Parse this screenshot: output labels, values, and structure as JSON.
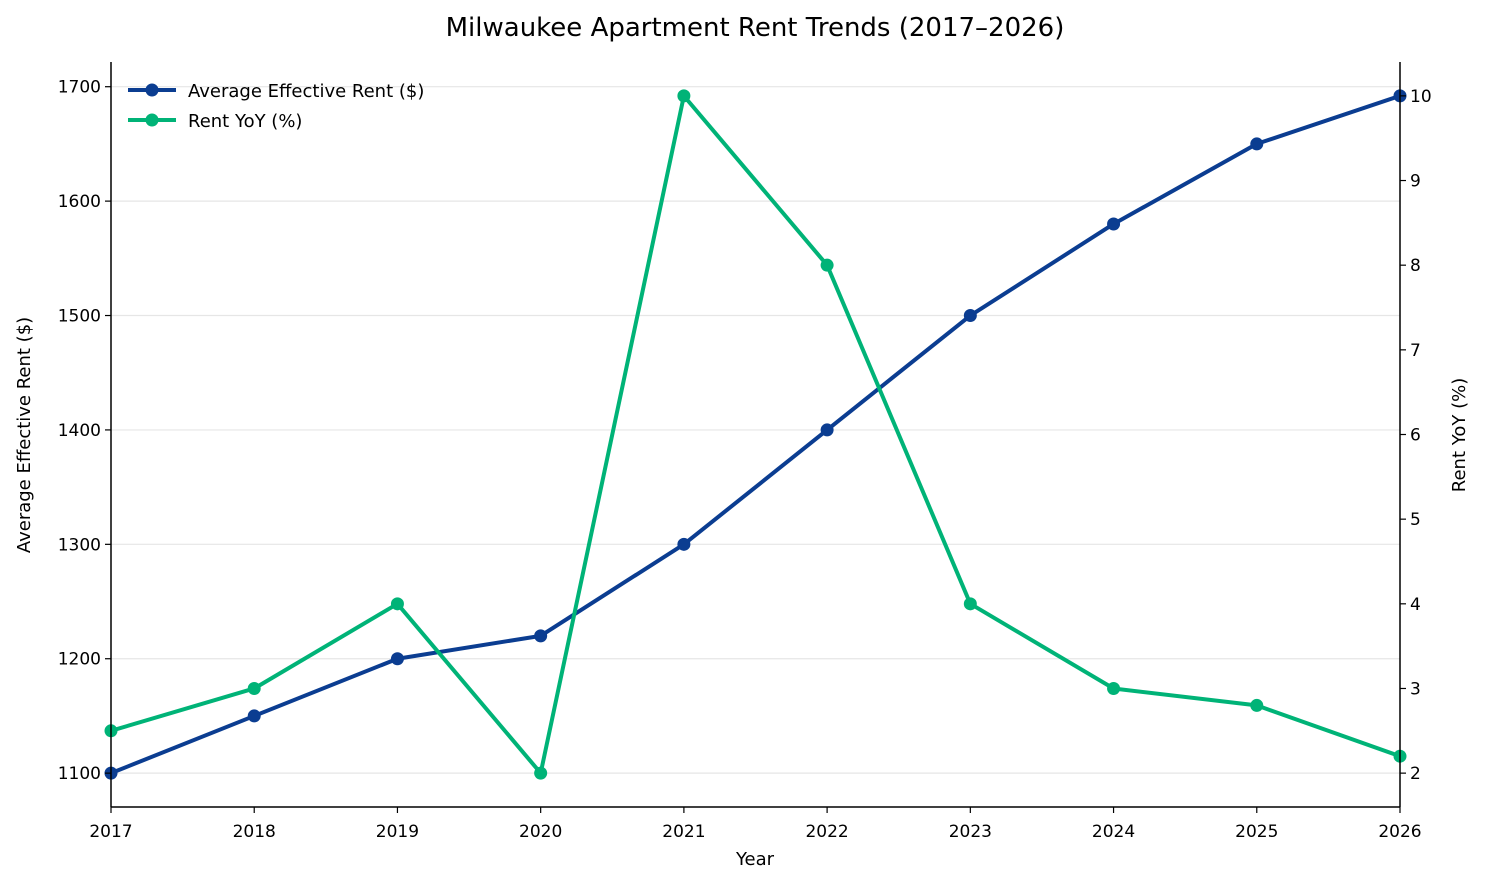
{
  "chart_data": {
    "type": "line",
    "title": "Milwaukee Apartment Rent Trends (2017–2026)",
    "xlabel": "Year",
    "ylabel": "Average Effective Rent ($)",
    "y2label": "Rent YoY (%)",
    "x": [
      2017,
      2018,
      2019,
      2020,
      2021,
      2022,
      2023,
      2024,
      2025,
      2026
    ],
    "xlim": [
      2017,
      2026
    ],
    "ylim": [
      1070.4,
      1721.6
    ],
    "y2lim": [
      1.6,
      10.4
    ],
    "yticks": [
      1100,
      1200,
      1300,
      1400,
      1500,
      1600,
      1700
    ],
    "y2ticks": [
      2,
      3,
      4,
      5,
      6,
      7,
      8,
      9,
      10
    ],
    "grid": "horizontal",
    "legend_placement": "top-left",
    "series": [
      {
        "name": "Average Effective Rent ($)",
        "axis": "left",
        "color": "#0b3d91",
        "values": [
          1100,
          1150,
          1200,
          1220,
          1300,
          1400,
          1500,
          1580,
          1650,
          1692
        ]
      },
      {
        "name": "Rent YoY (%)",
        "axis": "right",
        "color": "#00b377",
        "values": [
          2.5,
          3.0,
          4.0,
          2.0,
          10.0,
          8.0,
          4.0,
          3.0,
          2.8,
          2.2
        ]
      }
    ]
  }
}
